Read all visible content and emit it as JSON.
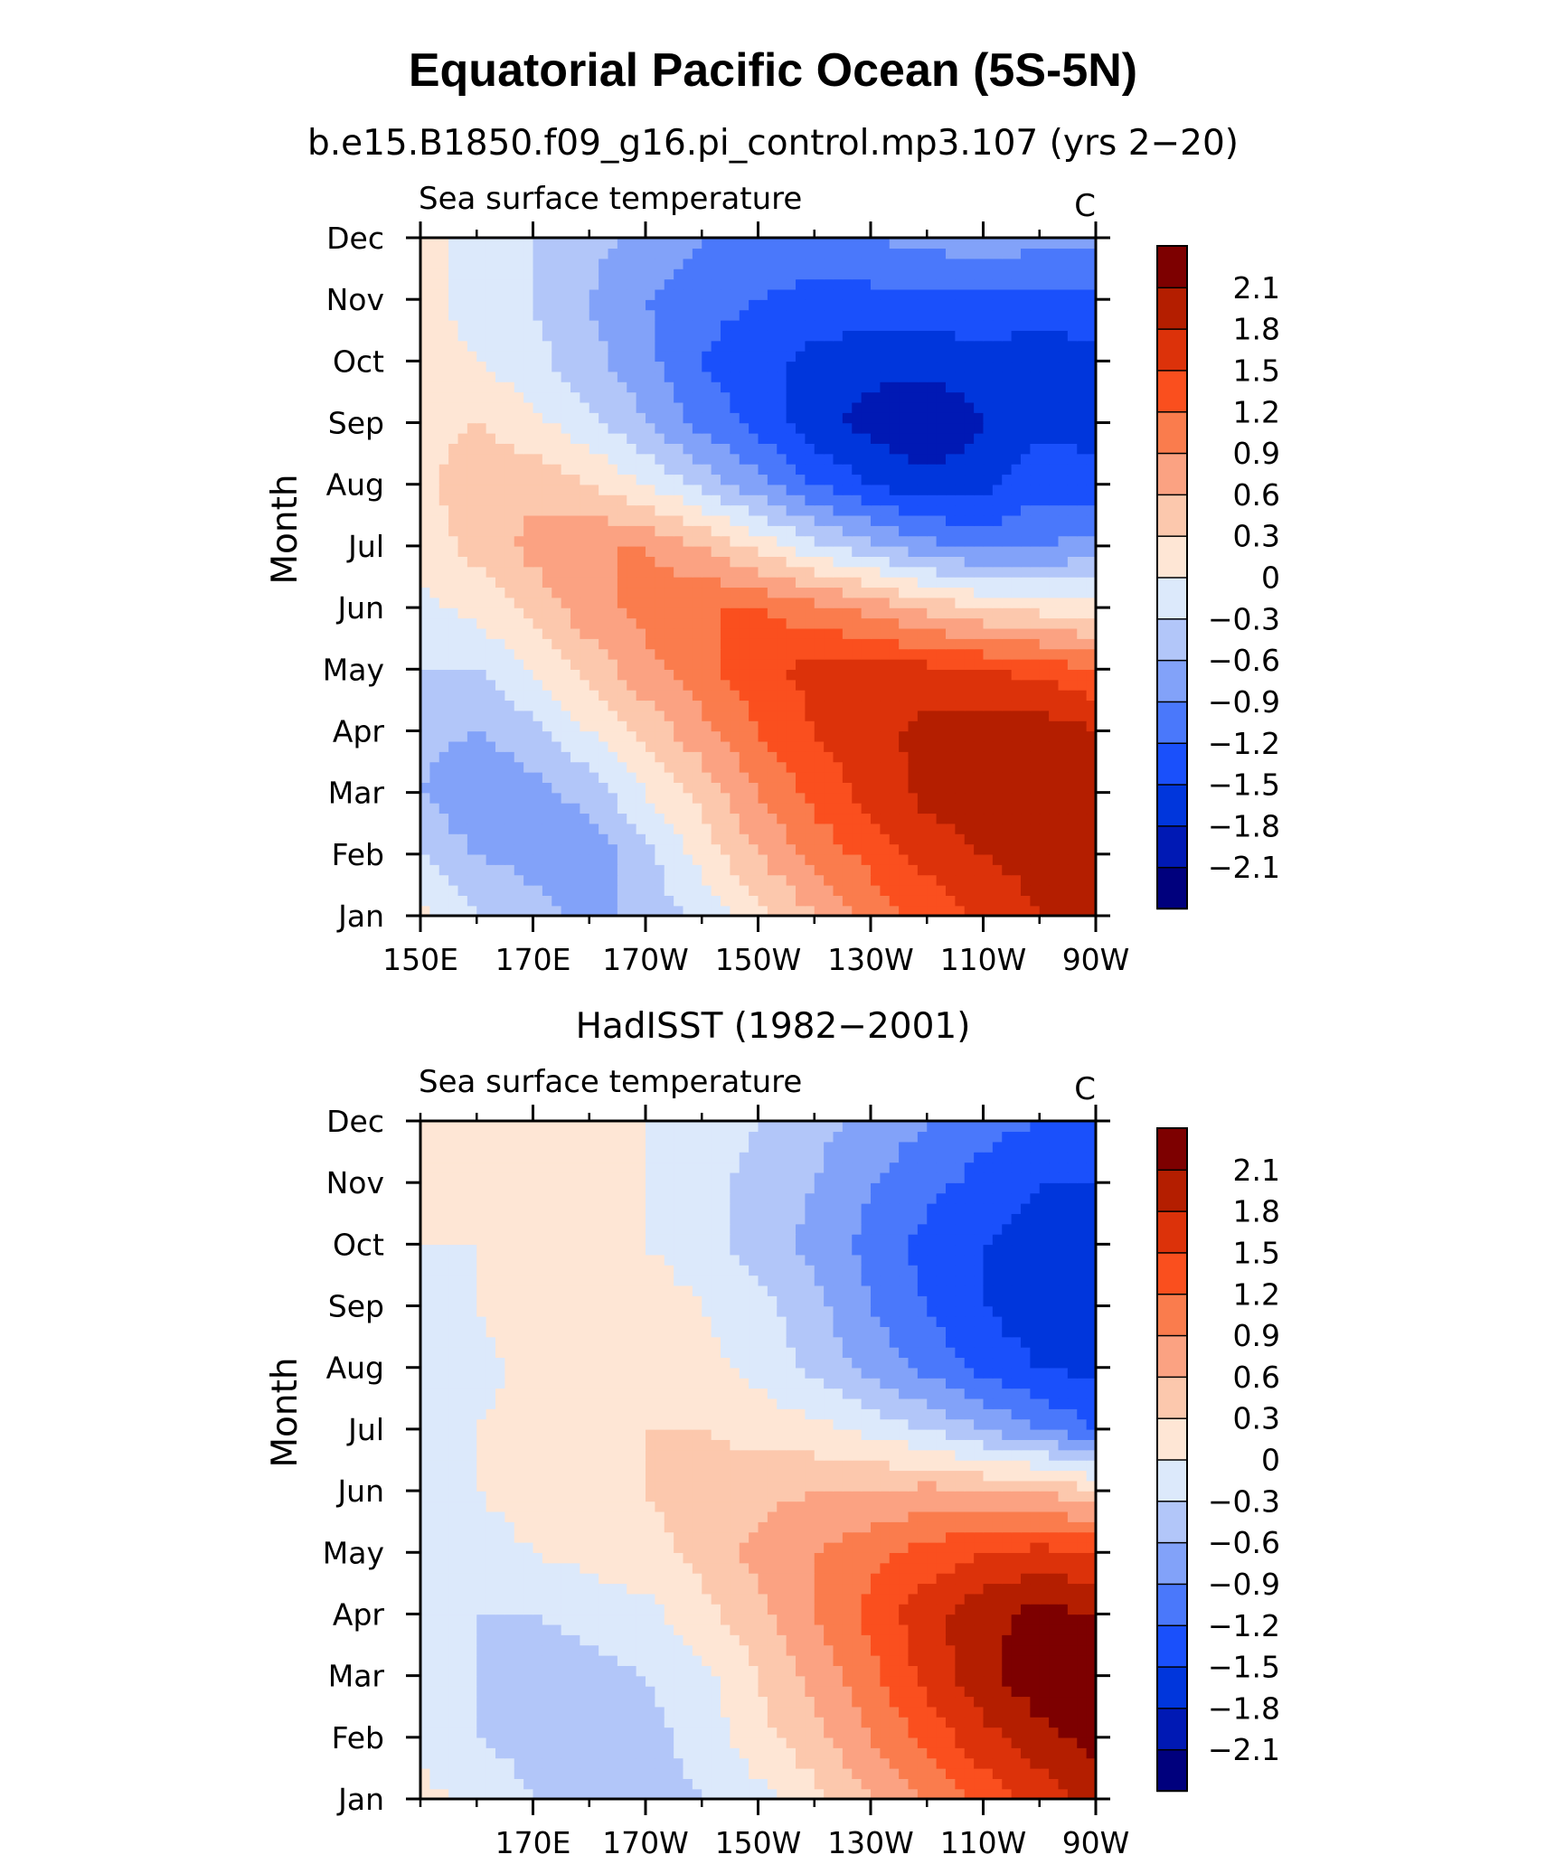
{
  "title": "Equatorial Pacific Ocean (5S-5N)",
  "chart_data": [
    {
      "type": "heatmap",
      "title": "b.e15.B1850.f09_g16.pi_control.mp3.107 (yrs 2−20)",
      "left_label": "Sea surface temperature",
      "units": "C",
      "ylabel": "Month",
      "xlabel": "",
      "x": [
        150,
        160,
        170,
        180,
        190,
        200,
        210,
        220,
        230,
        240,
        250,
        260,
        270
      ],
      "x_tick_values": [
        150,
        170,
        190,
        210,
        230,
        250,
        270
      ],
      "x_tick_labels": [
        "150E",
        "170E",
        "170W",
        "150W",
        "130W",
        "110W",
        "90W"
      ],
      "xlim": [
        150,
        270
      ],
      "y": [
        "Jan",
        "Feb",
        "Mar",
        "Apr",
        "May",
        "Jun",
        "Jul",
        "Aug",
        "Sep",
        "Oct",
        "Nov",
        "Dec"
      ],
      "ylim": [
        "Jan",
        "Dec"
      ],
      "levels": [
        -2.1,
        -1.8,
        -1.5,
        -1.2,
        -0.9,
        -0.6,
        -0.3,
        0,
        0.3,
        0.6,
        0.9,
        1.2,
        1.5,
        1.8,
        2.1
      ],
      "z": [
        [
          0.1,
          -0.3,
          -0.5,
          -0.7,
          -0.5,
          -0.2,
          0.2,
          0.6,
          1.0,
          1.3,
          1.6,
          1.8,
          1.8
        ],
        [
          -0.3,
          -0.6,
          -0.7,
          -0.8,
          -0.4,
          0.1,
          0.6,
          1.0,
          1.3,
          1.6,
          1.8,
          1.9,
          1.9
        ],
        [
          -0.6,
          -0.9,
          -0.7,
          -0.5,
          0.0,
          0.4,
          0.9,
          1.3,
          1.6,
          1.9,
          2.0,
          2.1,
          2.0
        ],
        [
          -0.5,
          -0.6,
          -0.4,
          0.0,
          0.4,
          0.8,
          1.2,
          1.5,
          1.7,
          1.9,
          2.0,
          2.0,
          1.8
        ],
        [
          -0.3,
          -0.3,
          0.0,
          0.4,
          0.8,
          1.1,
          1.4,
          1.6,
          1.6,
          1.6,
          1.5,
          1.4,
          1.2
        ],
        [
          -0.1,
          0.1,
          0.4,
          0.8,
          1.0,
          1.2,
          1.2,
          1.0,
          0.8,
          0.5,
          0.3,
          0.2,
          0.1
        ],
        [
          0.1,
          0.4,
          0.7,
          0.9,
          0.9,
          0.6,
          0.2,
          -0.2,
          -0.5,
          -0.8,
          -1.0,
          -0.9,
          -0.8
        ],
        [
          0.2,
          0.5,
          0.5,
          0.3,
          0.0,
          -0.4,
          -0.8,
          -1.2,
          -1.5,
          -1.7,
          -1.6,
          -1.3,
          -1.4
        ],
        [
          0.2,
          0.3,
          0.1,
          -0.2,
          -0.6,
          -1.0,
          -1.3,
          -1.7,
          -1.9,
          -2.1,
          -1.8,
          -1.6,
          -1.6
        ],
        [
          0.1,
          0.0,
          -0.2,
          -0.5,
          -0.8,
          -1.2,
          -1.4,
          -1.6,
          -1.7,
          -1.7,
          -1.6,
          -1.7,
          -1.6
        ],
        [
          0.1,
          -0.1,
          -0.3,
          -0.6,
          -0.9,
          -1.1,
          -1.2,
          -1.3,
          -1.3,
          -1.3,
          -1.3,
          -1.3,
          -1.3
        ],
        [
          0.1,
          -0.1,
          -0.3,
          -0.5,
          -0.7,
          -0.9,
          -1.0,
          -1.0,
          -0.9,
          -0.8,
          -0.7,
          -0.8,
          -0.8
        ]
      ],
      "colorbar_labels": [
        "2.1",
        "1.8",
        "1.5",
        "1.2",
        "0.9",
        "0.6",
        "0.3",
        "0",
        "−0.3",
        "−0.6",
        "−0.9",
        "−1.2",
        "−1.5",
        "−1.8",
        "−2.1"
      ]
    },
    {
      "type": "heatmap",
      "title": "HadISST (1982−2001)",
      "left_label": "Sea surface temperature",
      "units": "C",
      "ylabel": "Month",
      "xlabel": "",
      "x": [
        150,
        160,
        170,
        180,
        190,
        200,
        210,
        220,
        230,
        240,
        250,
        260,
        270
      ],
      "x_tick_values": [
        170,
        190,
        210,
        230,
        250,
        270
      ],
      "x_tick_labels": [
        "170E",
        "170W",
        "150W",
        "130W",
        "110W",
        "90W"
      ],
      "xlim": [
        150,
        270
      ],
      "y": [
        "Jan",
        "Feb",
        "Mar",
        "Apr",
        "May",
        "Jun",
        "Jul",
        "Aug",
        "Sep",
        "Oct",
        "Nov",
        "Dec"
      ],
      "ylim": [
        "Jan",
        "Dec"
      ],
      "levels": [
        -2.1,
        -1.8,
        -1.5,
        -1.2,
        -0.9,
        -0.6,
        -0.3,
        0,
        0.3,
        0.6,
        0.9,
        1.2,
        1.5,
        1.8,
        2.1
      ],
      "z": [
        [
          0.1,
          -0.1,
          -0.3,
          -0.4,
          -0.4,
          -0.3,
          -0.1,
          0.2,
          0.6,
          0.9,
          1.3,
          1.6,
          1.9
        ],
        [
          -0.1,
          -0.3,
          -0.4,
          -0.5,
          -0.4,
          -0.2,
          0.2,
          0.5,
          0.9,
          1.3,
          1.7,
          2.0,
          2.2
        ],
        [
          -0.2,
          -0.3,
          -0.5,
          -0.4,
          -0.3,
          -0.1,
          0.3,
          0.7,
          1.1,
          1.6,
          2.0,
          2.3,
          2.3
        ],
        [
          -0.2,
          -0.3,
          -0.3,
          -0.2,
          -0.1,
          0.2,
          0.5,
          0.9,
          1.3,
          1.7,
          2.0,
          2.2,
          2.1
        ],
        [
          -0.1,
          -0.1,
          0.0,
          0.1,
          0.2,
          0.4,
          0.7,
          0.9,
          1.1,
          1.3,
          1.5,
          1.6,
          1.5
        ],
        [
          -0.1,
          0.0,
          0.1,
          0.2,
          0.3,
          0.4,
          0.5,
          0.6,
          0.6,
          0.7,
          0.6,
          0.6,
          0.3
        ],
        [
          -0.2,
          0.0,
          0.1,
          0.2,
          0.3,
          0.3,
          0.2,
          0.1,
          -0.1,
          -0.3,
          -0.6,
          -0.9,
          -1.2
        ],
        [
          -0.2,
          -0.1,
          0.1,
          0.2,
          0.2,
          0.1,
          -0.1,
          -0.4,
          -0.7,
          -1.0,
          -1.3,
          -1.5,
          -1.6
        ],
        [
          -0.1,
          0.0,
          0.2,
          0.3,
          0.2,
          0.0,
          -0.2,
          -0.5,
          -0.9,
          -1.2,
          -1.5,
          -1.7,
          -1.8
        ],
        [
          0.0,
          0.0,
          0.1,
          0.1,
          0.0,
          -0.2,
          -0.4,
          -0.7,
          -1.0,
          -1.3,
          -1.5,
          -1.7,
          -1.7
        ],
        [
          0.0,
          0.0,
          0.1,
          0.1,
          0.0,
          -0.2,
          -0.4,
          -0.6,
          -0.9,
          -1.1,
          -1.3,
          -1.5,
          -1.5
        ],
        [
          0.0,
          0.0,
          0.1,
          0.1,
          0.0,
          -0.1,
          -0.3,
          -0.5,
          -0.7,
          -0.9,
          -1.1,
          -1.2,
          -1.2
        ]
      ],
      "colorbar_labels": [
        "2.1",
        "1.8",
        "1.5",
        "1.2",
        "0.9",
        "0.6",
        "0.3",
        "0",
        "−0.3",
        "−0.6",
        "−0.9",
        "−1.2",
        "−1.5",
        "−1.8",
        "−2.1"
      ]
    }
  ],
  "colors": {
    "palette": [
      "#00007d",
      "#0019b4",
      "#0036dc",
      "#1a50fb",
      "#4a78fb",
      "#82a2f9",
      "#b2c6f9",
      "#dce9fb",
      "#fee6d5",
      "#fcc8ad",
      "#fba282",
      "#fa7c4d",
      "#fa4f1e",
      "#dc320a",
      "#b41e00",
      "#7d0000"
    ],
    "axis": "#000000"
  }
}
